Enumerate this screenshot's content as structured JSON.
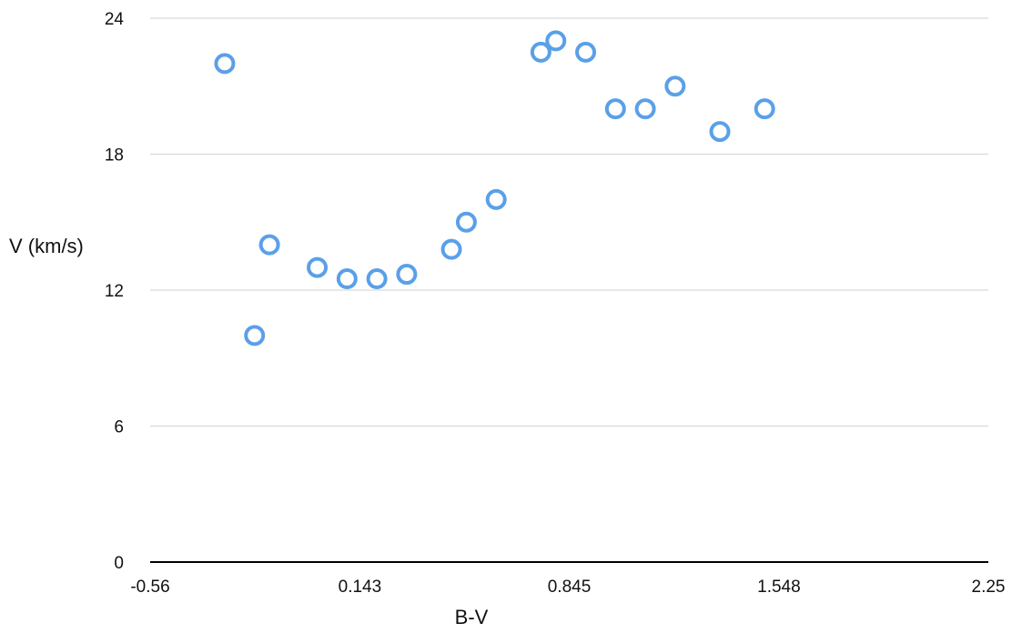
{
  "chart_data": {
    "type": "scatter",
    "title": "",
    "xlabel": "B-V",
    "ylabel": "V (km/s)",
    "xlim": [
      -0.56,
      2.25
    ],
    "ylim": [
      0,
      24
    ],
    "x_ticks": [
      "-0.56",
      "0.143",
      "0.845",
      "1.548",
      "2.25"
    ],
    "y_ticks": [
      "0",
      "6",
      "12",
      "18",
      "24"
    ],
    "grid": "horizontal",
    "legend": "none",
    "marker": "open-circle",
    "marker_color": "#5aa0e8",
    "grid_color": "#d9d9d9",
    "axis_color": "#000000",
    "points": [
      {
        "x": -0.31,
        "y": 22.0
      },
      {
        "x": -0.21,
        "y": 10.0
      },
      {
        "x": -0.16,
        "y": 14.0
      },
      {
        "x": 0.0,
        "y": 13.0
      },
      {
        "x": 0.1,
        "y": 12.5
      },
      {
        "x": 0.2,
        "y": 12.5
      },
      {
        "x": 0.3,
        "y": 12.7
      },
      {
        "x": 0.45,
        "y": 13.8
      },
      {
        "x": 0.5,
        "y": 15.0
      },
      {
        "x": 0.6,
        "y": 16.0
      },
      {
        "x": 0.75,
        "y": 22.5
      },
      {
        "x": 0.8,
        "y": 23.0
      },
      {
        "x": 0.9,
        "y": 22.5
      },
      {
        "x": 1.0,
        "y": 20.0
      },
      {
        "x": 1.1,
        "y": 20.0
      },
      {
        "x": 1.2,
        "y": 21.0
      },
      {
        "x": 1.35,
        "y": 19.0
      },
      {
        "x": 1.5,
        "y": 20.0
      }
    ]
  }
}
